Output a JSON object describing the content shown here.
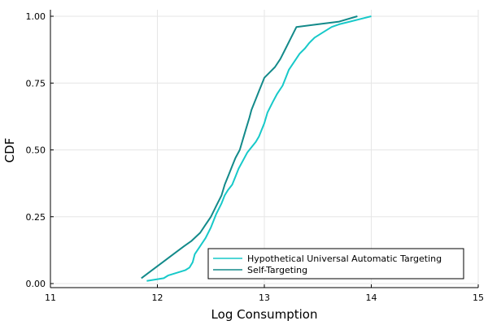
{
  "chart_data": {
    "type": "line",
    "title": "",
    "xlabel": "Log Consumption",
    "ylabel": "CDF",
    "xlim": [
      11,
      15
    ],
    "ylim": [
      0,
      1
    ],
    "xticks": [
      11,
      12,
      13,
      14,
      15
    ],
    "yticks": [
      0.0,
      0.25,
      0.5,
      0.75,
      1.0
    ],
    "xtick_labels": [
      "11",
      "12",
      "13",
      "14",
      "15"
    ],
    "ytick_labels": [
      "0.00",
      "0.25",
      "0.50",
      "0.75",
      "1.00"
    ],
    "grid": true,
    "legend_position": "bottom-right",
    "series": [
      {
        "name": "Hypothetical Universal Automatic Targeting",
        "color": "#17c9c9",
        "x": [
          11.9,
          12.06,
          12.1,
          12.18,
          12.26,
          12.3,
          12.33,
          12.35,
          12.4,
          12.45,
          12.5,
          12.55,
          12.6,
          12.63,
          12.66,
          12.7,
          12.73,
          12.76,
          12.8,
          12.84,
          12.88,
          12.92,
          12.95,
          13.0,
          13.03,
          13.08,
          13.12,
          13.17,
          13.2,
          13.23,
          13.28,
          13.33,
          13.38,
          13.42,
          13.47,
          13.55,
          13.63,
          13.7,
          13.8,
          13.9,
          14.0
        ],
        "y": [
          0.01,
          0.02,
          0.03,
          0.04,
          0.05,
          0.06,
          0.08,
          0.11,
          0.14,
          0.17,
          0.21,
          0.26,
          0.3,
          0.33,
          0.35,
          0.37,
          0.4,
          0.43,
          0.46,
          0.49,
          0.51,
          0.53,
          0.55,
          0.6,
          0.64,
          0.68,
          0.71,
          0.74,
          0.77,
          0.8,
          0.83,
          0.86,
          0.88,
          0.9,
          0.92,
          0.94,
          0.96,
          0.97,
          0.98,
          0.99,
          1.0
        ]
      },
      {
        "name": "Self-Targeting",
        "color": "#138a8a",
        "x": [
          11.85,
          11.95,
          12.05,
          12.15,
          12.25,
          12.32,
          12.4,
          12.45,
          12.5,
          12.55,
          12.6,
          12.63,
          12.67,
          12.7,
          12.73,
          12.77,
          12.8,
          12.83,
          12.86,
          12.88,
          12.92,
          12.95,
          12.98,
          13.0,
          13.05,
          13.1,
          13.15,
          13.2,
          13.25,
          13.3,
          13.5,
          13.7,
          13.87
        ],
        "y": [
          0.02,
          0.05,
          0.08,
          0.11,
          0.14,
          0.16,
          0.19,
          0.22,
          0.25,
          0.29,
          0.33,
          0.37,
          0.41,
          0.44,
          0.47,
          0.5,
          0.54,
          0.58,
          0.62,
          0.65,
          0.69,
          0.72,
          0.75,
          0.77,
          0.79,
          0.81,
          0.84,
          0.88,
          0.92,
          0.96,
          0.97,
          0.98,
          1.0
        ]
      }
    ]
  }
}
